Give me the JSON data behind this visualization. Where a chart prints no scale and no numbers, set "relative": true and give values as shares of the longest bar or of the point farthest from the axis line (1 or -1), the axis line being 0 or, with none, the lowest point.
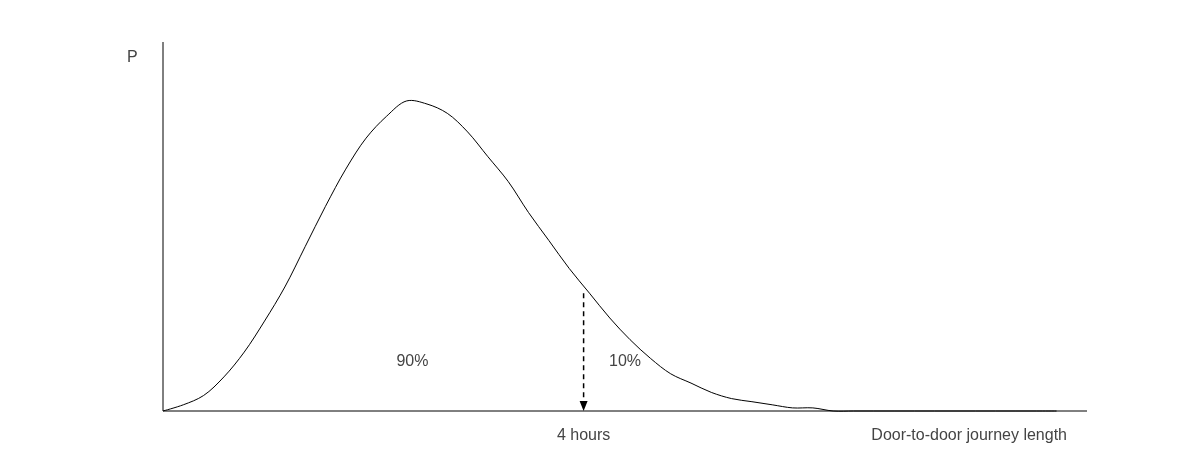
{
  "chart_data": {
    "type": "line",
    "relative": true,
    "ylabel": "P",
    "xlabel": "Door-to-door journey length",
    "categories": [
      null,
      null,
      null,
      null,
      null,
      null,
      null,
      null,
      null,
      null,
      null,
      null,
      null,
      null,
      null,
      null,
      null,
      null,
      null,
      null,
      null,
      null,
      null,
      null,
      null,
      null,
      null,
      null,
      null,
      null,
      null,
      null,
      null,
      null,
      null,
      null,
      null,
      null,
      null,
      null,
      null,
      null,
      null,
      null,
      null
    ],
    "series": [
      {
        "color": "#000000",
        "values": [
          0,
          0.02,
          0.05,
          0.11,
          0.19,
          0.29,
          0.4,
          0.53,
          0.66,
          0.78,
          0.88,
          0.95,
          1,
          0.99,
          0.96,
          0.9,
          0.82,
          0.74,
          0.64,
          0.55,
          0.46,
          0.38,
          0.3,
          0.23,
          0.17,
          0.12,
          0.09,
          0.06,
          0.04,
          0.03,
          0.02,
          0.01,
          0.01,
          0,
          0,
          0,
          0,
          0,
          0,
          0,
          0,
          0,
          0,
          0,
          0
        ]
      }
    ],
    "annotations": [
      "90%",
      "10%",
      "4 hours"
    ],
    "marker": "none",
    "line_style": "solid",
    "grid": false
  }
}
